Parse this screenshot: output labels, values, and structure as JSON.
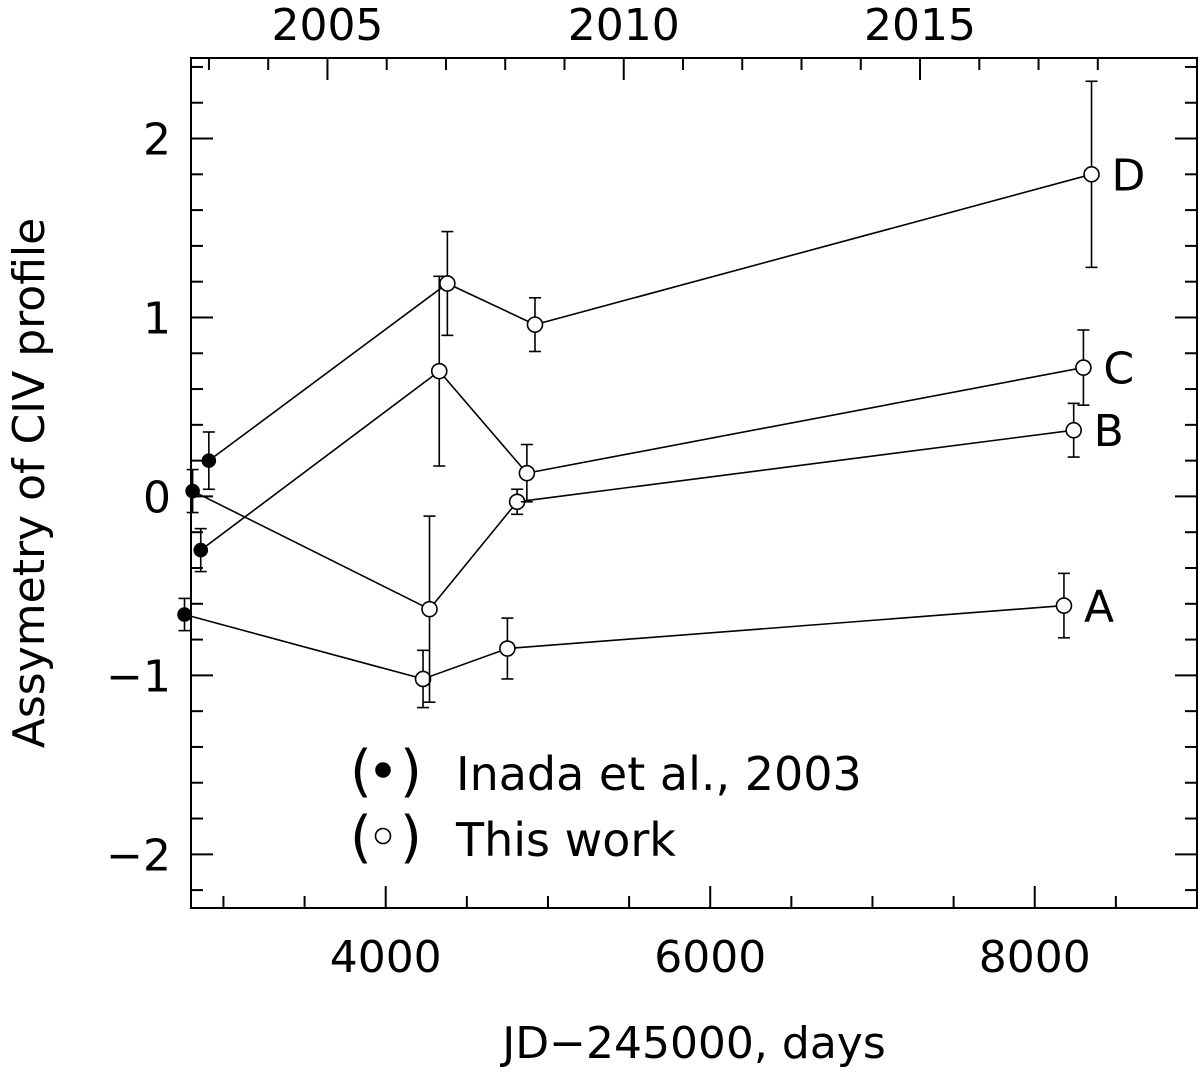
{
  "chart_data": {
    "type": "scatter",
    "xlabel": "JD−245000, days",
    "ylabel": "Assymetry of CIV profile",
    "xlim": [
      2800,
      9000
    ],
    "ylim": [
      -2.3,
      2.45
    ],
    "x_ticks": [
      4000,
      6000,
      8000
    ],
    "x_tick_labels": [
      "4000",
      "6000",
      "8000"
    ],
    "x_minor_step": 500,
    "y_ticks": [
      -2,
      -1,
      0,
      1,
      2
    ],
    "y_tick_labels": [
      "−2",
      "−1",
      "0",
      "1",
      "2"
    ],
    "y_minor_step": 0.2,
    "top_axis": {
      "ticks": [
        2005,
        2010,
        2015
      ],
      "tick_labels": [
        "2005",
        "2010",
        "2015"
      ],
      "tick_positions_x": [
        3641,
        5467,
        7293
      ],
      "minor_step_years": 1
    },
    "grid": false,
    "series": [
      {
        "name": "A",
        "points": [
          {
            "x": 2760,
            "y": -0.66,
            "err": 0.09,
            "marker": "filled"
          },
          {
            "x": 4230,
            "y": -1.02,
            "err": 0.16,
            "marker": "open"
          },
          {
            "x": 4750,
            "y": -0.85,
            "err": 0.17,
            "marker": "open"
          },
          {
            "x": 8180,
            "y": -0.61,
            "err": 0.18,
            "marker": "open"
          }
        ]
      },
      {
        "name": "B",
        "points": [
          {
            "x": 2810,
            "y": 0.03,
            "err": 0.12,
            "marker": "filled"
          },
          {
            "x": 4270,
            "y": -0.63,
            "err": 0.52,
            "marker": "open"
          },
          {
            "x": 4810,
            "y": -0.03,
            "err": 0.07,
            "marker": "open"
          },
          {
            "x": 8240,
            "y": 0.37,
            "err": 0.15,
            "marker": "open"
          }
        ]
      },
      {
        "name": "C",
        "points": [
          {
            "x": 2860,
            "y": -0.3,
            "err": 0.12,
            "marker": "filled"
          },
          {
            "x": 4330,
            "y": 0.7,
            "err": 0.53,
            "marker": "open"
          },
          {
            "x": 4870,
            "y": 0.13,
            "err": 0.16,
            "marker": "open"
          },
          {
            "x": 8300,
            "y": 0.72,
            "err": 0.21,
            "marker": "open"
          }
        ]
      },
      {
        "name": "D",
        "points": [
          {
            "x": 2910,
            "y": 0.2,
            "err": 0.16,
            "marker": "filled"
          },
          {
            "x": 4380,
            "y": 1.19,
            "err": 0.29,
            "marker": "open"
          },
          {
            "x": 4920,
            "y": 0.96,
            "err": 0.15,
            "marker": "open"
          },
          {
            "x": 8350,
            "y": 1.8,
            "err": 0.52,
            "marker": "open"
          }
        ]
      }
    ],
    "legend": {
      "placement": "lower-center",
      "entries": [
        {
          "marker": "filled",
          "label": "Inada et al., 2003"
        },
        {
          "marker": "open",
          "label": "This work"
        }
      ]
    }
  }
}
